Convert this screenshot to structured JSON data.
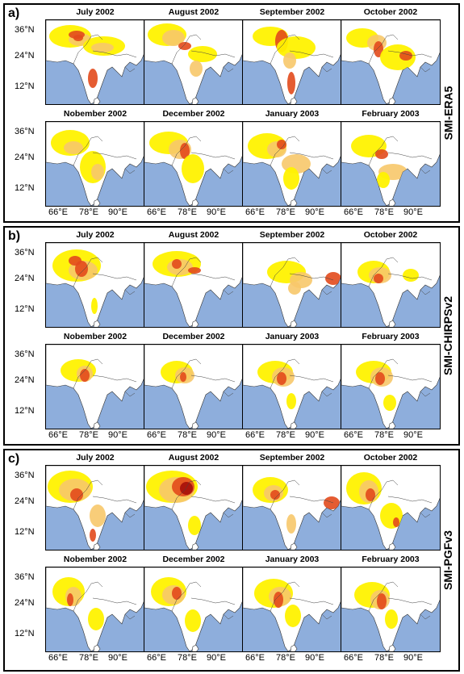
{
  "panels": [
    {
      "letter": "a)",
      "product": "SMI-ERA5",
      "months": [
        "July 2002",
        "August 2002",
        "September 2002",
        "October 2002",
        "Nobember 2002",
        "December 2002",
        "January 2003",
        "February 2003"
      ]
    },
    {
      "letter": "b)",
      "product": "SMI-CHIRPSv2",
      "months": [
        "July 2002",
        "August 2002",
        "September 2002",
        "October 2002",
        "Nobember 2002",
        "December 2002",
        "January 2003",
        "February 2003"
      ]
    },
    {
      "letter": "c)",
      "product": "SMI-PGFv3",
      "months": [
        "July 2002",
        "August 2002",
        "September 2002",
        "October 2002",
        "Nobember 2002",
        "December 2002",
        "January 2003",
        "February 2003"
      ]
    }
  ],
  "axes": {
    "lat_ticks": [
      "36°N",
      "24°N",
      "12°N"
    ],
    "lon_ticks": [
      "66°E",
      "78°E",
      "90°E"
    ]
  },
  "colors": {
    "ocean": "#8eaedc",
    "land": "#ffffff",
    "mild": "#fff200",
    "moderate": "#f7c86a",
    "severe": "#e24a1c",
    "extreme": "#a50f0a"
  }
}
